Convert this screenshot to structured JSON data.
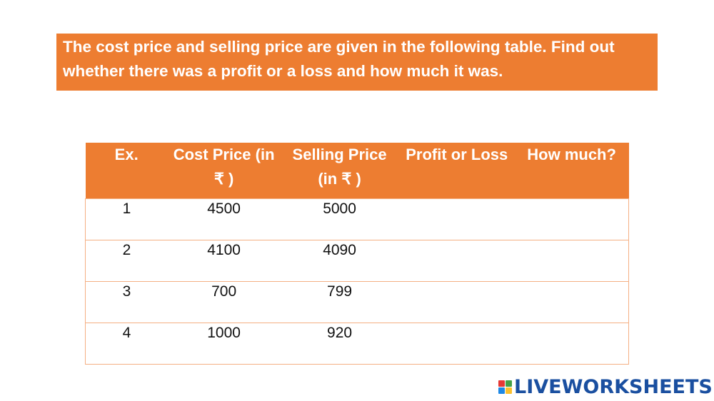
{
  "instructions": "The cost price and selling price are given in the following table. Find out whether there was a profit or a loss and how much it was.",
  "table": {
    "headers": [
      "Ex.",
      "Cost Price (in ₹  )",
      "Selling Price (in ₹ )",
      "Profit or Loss",
      "How much?"
    ],
    "rows": [
      {
        "ex": "1",
        "cost": "4500",
        "selling": "5000",
        "profit_or_loss": "",
        "how_much": ""
      },
      {
        "ex": "2",
        "cost": "4100",
        "selling": "4090",
        "profit_or_loss": "",
        "how_much": ""
      },
      {
        "ex": "3",
        "cost": "700",
        "selling": "799",
        "profit_or_loss": "",
        "how_much": ""
      },
      {
        "ex": "4",
        "cost": "1000",
        "selling": "920",
        "profit_or_loss": "",
        "how_much": ""
      }
    ]
  },
  "branding": {
    "logo_text": "LIVEWORKSHEETS",
    "logo_icon": "liveworksheets-logo-icon",
    "logo_colors": [
      "#e53935",
      "#43a047",
      "#1e88e5",
      "#fbc02d"
    ]
  },
  "colors": {
    "accent": "#ed7d31",
    "table_border": "#f4b083",
    "logo_text": "#1a4fa0"
  }
}
